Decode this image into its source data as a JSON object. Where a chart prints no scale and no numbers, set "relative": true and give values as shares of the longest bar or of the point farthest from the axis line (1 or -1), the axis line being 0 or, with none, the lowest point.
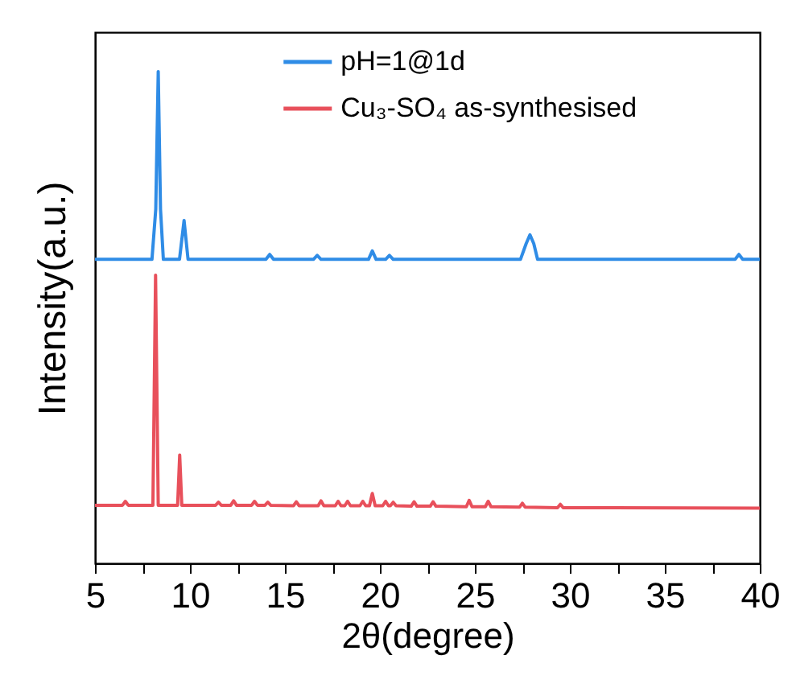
{
  "chart_data": {
    "type": "line",
    "relative": true,
    "xlabel": "2θ(degree)",
    "ylabel": "Intensity(a.u.)",
    "xlim": [
      5,
      40
    ],
    "xticks": [
      5,
      {
        "value": 7.5,
        "label": null
      },
      10,
      {
        "value": 12.5,
        "label": null
      },
      15,
      {
        "value": 17.5,
        "label": null
      },
      20,
      {
        "value": 22.5,
        "label": null
      },
      25,
      {
        "value": 27.5,
        "label": null
      },
      30,
      {
        "value": 32.5,
        "label": null
      },
      35,
      {
        "value": 37.5,
        "label": null
      },
      40
    ],
    "legend": "top",
    "series": [
      {
        "name": "pH=1@1d",
        "color": "#2f8ce6",
        "x": [
          5,
          8.0,
          8.2,
          8.33,
          8.45,
          8.6,
          9.45,
          9.69,
          9.9,
          14.0,
          14.2,
          14.4,
          16.5,
          16.7,
          16.9,
          19.4,
          19.6,
          19.8,
          20.3,
          20.5,
          20.7,
          27.4,
          27.7,
          27.9,
          28.1,
          28.3,
          38.7,
          38.9,
          39.1,
          40
        ],
        "values": [
          0.618,
          0.618,
          0.72,
          1,
          0.72,
          0.618,
          0.618,
          0.697,
          0.618,
          0.618,
          0.628,
          0.618,
          0.618,
          0.626,
          0.618,
          0.618,
          0.635,
          0.618,
          0.618,
          0.626,
          0.618,
          0.618,
          0.65,
          0.668,
          0.65,
          0.618,
          0.618,
          0.628,
          0.618,
          0.618
        ]
      },
      {
        "name": "Cu₃-SO₄ as-synthesised",
        "color": "#e8505b",
        "x": [
          5,
          6.45,
          6.6,
          6.75,
          8.05,
          8.19,
          8.33,
          9.35,
          9.46,
          9.57,
          11.35,
          11.5,
          11.65,
          12.15,
          12.3,
          12.45,
          13.25,
          13.4,
          13.55,
          13.95,
          14.1,
          14.25,
          15.45,
          15.6,
          15.75,
          16.75,
          16.9,
          17.05,
          17.65,
          17.8,
          17.95,
          18.15,
          18.3,
          18.45,
          18.95,
          19.1,
          19.25,
          19.45,
          19.6,
          19.75,
          20.15,
          20.3,
          20.45,
          20.55,
          20.7,
          20.85,
          21.65,
          21.8,
          21.95,
          22.65,
          22.8,
          22.95,
          24.55,
          24.7,
          24.85,
          25.55,
          25.7,
          25.85,
          27.35,
          27.5,
          27.65,
          29.35,
          29.5,
          29.65,
          40
        ],
        "values": [
          0.118,
          0.118,
          0.126,
          0.118,
          0.118,
          0.586,
          0.118,
          0.118,
          0.22,
          0.118,
          0.118,
          0.124,
          0.118,
          0.118,
          0.127,
          0.118,
          0.118,
          0.126,
          0.118,
          0.118,
          0.124,
          0.118,
          0.117,
          0.125,
          0.117,
          0.117,
          0.127,
          0.117,
          0.117,
          0.126,
          0.117,
          0.117,
          0.126,
          0.117,
          0.117,
          0.126,
          0.117,
          0.117,
          0.142,
          0.117,
          0.117,
          0.126,
          0.117,
          0.117,
          0.124,
          0.117,
          0.116,
          0.125,
          0.116,
          0.116,
          0.125,
          0.116,
          0.115,
          0.128,
          0.115,
          0.115,
          0.126,
          0.115,
          0.114,
          0.122,
          0.114,
          0.113,
          0.12,
          0.113,
          0.112
        ]
      }
    ]
  }
}
